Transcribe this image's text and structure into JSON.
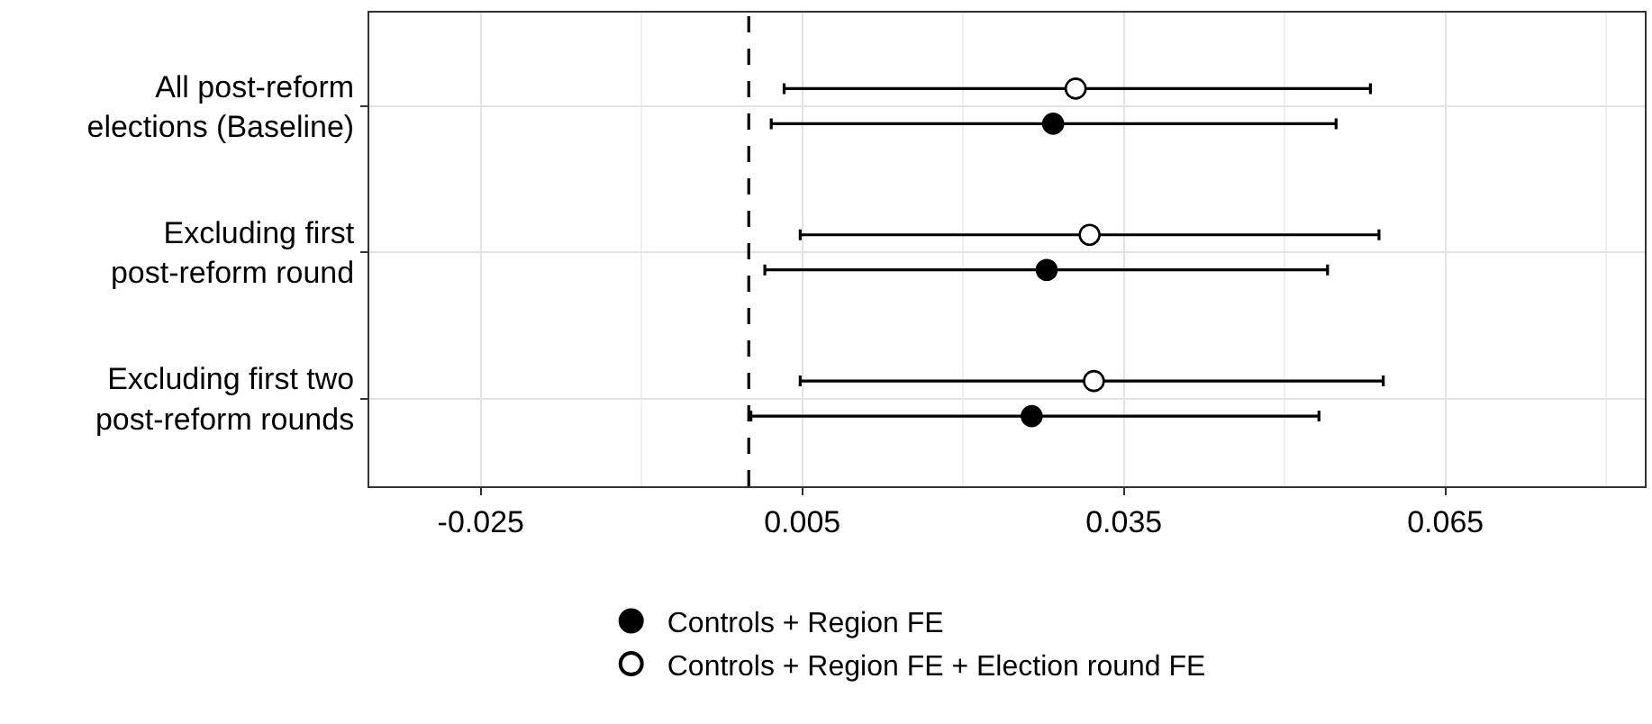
{
  "chart_data": {
    "type": "scatter",
    "categories": [
      "All post-reform\nelections (Baseline)",
      "Excluding first\npost-reform round",
      "Excluding first two\npost-reform rounds"
    ],
    "orientation": "horizontal",
    "series": [
      {
        "name": "Controls + Region FE",
        "color": "#000000",
        "values": [
          0.0284,
          0.0278,
          0.0264
        ],
        "errors": [
          [
            0.0021,
            0.0548
          ],
          [
            0.0015,
            0.054
          ],
          [
            0.0002,
            0.0532
          ]
        ]
      },
      {
        "name": "Controls + Region FE + Election round FE",
        "color": "#ffffff",
        "values": [
          0.0305,
          0.0318,
          0.0322
        ],
        "errors": [
          [
            0.0033,
            0.058
          ],
          [
            0.0048,
            0.0588
          ],
          [
            0.0048,
            0.0592
          ]
        ]
      }
    ],
    "xlim": [
      -0.0354,
      0.0836
    ],
    "xticks": [
      {
        "value": -0.025,
        "label": "-0.025"
      },
      {
        "value": 0.005,
        "label": "0.005"
      },
      {
        "value": 0.035,
        "label": "0.035"
      },
      {
        "value": 0.065,
        "label": "0.065"
      }
    ],
    "ref_lines": [
      {
        "axis": "x",
        "value": 0,
        "color": "#000000",
        "line_style": "dashed"
      }
    ],
    "marker": "circle",
    "grid": true,
    "legend": "bottom"
  }
}
